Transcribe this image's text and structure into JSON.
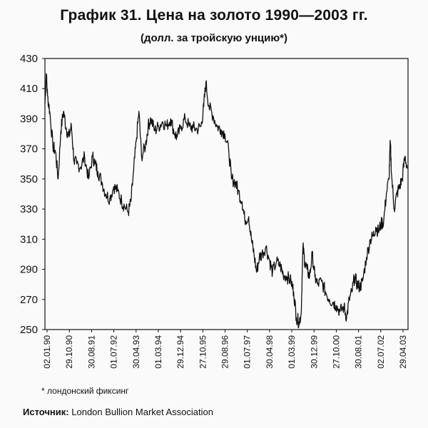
{
  "title": "График 31. Цена на золото 1990—2003 гг.",
  "subtitle": "(долл. за тройскую унцию*)",
  "footnote": "* лондонский фиксинг",
  "source": {
    "label": "Источник:",
    "text": "London Bullion Market Association"
  },
  "colors": {
    "line": "#111111",
    "background": "#fafafa"
  },
  "chart_data": {
    "type": "line",
    "title": "График 31. Цена на золото 1990—2003 гг.",
    "xlabel": "",
    "ylabel": "",
    "ylim": [
      250,
      430
    ],
    "yticks": [
      250,
      270,
      290,
      310,
      330,
      350,
      370,
      390,
      410,
      430
    ],
    "xtick_labels": [
      "02.01.90",
      "29.10.90",
      "30.08.91",
      "01.07.92",
      "30.04.93",
      "01.03.94",
      "29.12.94",
      "27.10.95",
      "29.08.96",
      "01.07.97",
      "30.04.98",
      "01.03.99",
      "30.12.99",
      "27.10.00",
      "30.08.01",
      "02.07.02",
      "29.04.03"
    ],
    "grid": false,
    "series": [
      {
        "values": [
          [
            1990.0,
            400
          ],
          [
            1990.05,
            420
          ],
          [
            1990.1,
            405
          ],
          [
            1990.18,
            395
          ],
          [
            1990.3,
            372
          ],
          [
            1990.4,
            368
          ],
          [
            1990.5,
            350
          ],
          [
            1990.6,
            382
          ],
          [
            1990.7,
            395
          ],
          [
            1990.8,
            384
          ],
          [
            1990.9,
            378
          ],
          [
            1991.0,
            385
          ],
          [
            1991.1,
            362
          ],
          [
            1991.2,
            360
          ],
          [
            1991.35,
            358
          ],
          [
            1991.5,
            365
          ],
          [
            1991.65,
            350
          ],
          [
            1991.8,
            365
          ],
          [
            1991.9,
            360
          ],
          [
            1992.0,
            355
          ],
          [
            1992.15,
            348
          ],
          [
            1992.3,
            340
          ],
          [
            1992.45,
            337
          ],
          [
            1992.6,
            345
          ],
          [
            1992.75,
            342
          ],
          [
            1992.9,
            335
          ],
          [
            1993.0,
            332
          ],
          [
            1993.15,
            328
          ],
          [
            1993.25,
            335
          ],
          [
            1993.35,
            355
          ],
          [
            1993.45,
            375
          ],
          [
            1993.55,
            395
          ],
          [
            1993.65,
            365
          ],
          [
            1993.8,
            372
          ],
          [
            1993.9,
            385
          ],
          [
            1994.0,
            390
          ],
          [
            1994.15,
            382
          ],
          [
            1994.3,
            385
          ],
          [
            1994.45,
            388
          ],
          [
            1994.6,
            385
          ],
          [
            1994.75,
            390
          ],
          [
            1994.9,
            380
          ],
          [
            1995.0,
            378
          ],
          [
            1995.15,
            385
          ],
          [
            1995.3,
            390
          ],
          [
            1995.45,
            385
          ],
          [
            1995.6,
            384
          ],
          [
            1995.75,
            383
          ],
          [
            1995.9,
            385
          ],
          [
            1996.0,
            398
          ],
          [
            1996.08,
            414
          ],
          [
            1996.2,
            398
          ],
          [
            1996.35,
            392
          ],
          [
            1996.5,
            385
          ],
          [
            1996.65,
            383
          ],
          [
            1996.8,
            380
          ],
          [
            1996.95,
            368
          ],
          [
            1997.05,
            350
          ],
          [
            1997.2,
            348
          ],
          [
            1997.3,
            342
          ],
          [
            1997.45,
            335
          ],
          [
            1997.55,
            323
          ],
          [
            1997.7,
            325
          ],
          [
            1997.8,
            310
          ],
          [
            1997.9,
            300
          ],
          [
            1998.0,
            288
          ],
          [
            1998.1,
            298
          ],
          [
            1998.2,
            300
          ],
          [
            1998.35,
            305
          ],
          [
            1998.5,
            295
          ],
          [
            1998.6,
            288
          ],
          [
            1998.75,
            295
          ],
          [
            1998.9,
            292
          ],
          [
            1999.0,
            287
          ],
          [
            1999.15,
            285
          ],
          [
            1999.3,
            282
          ],
          [
            1999.4,
            275
          ],
          [
            1999.5,
            258
          ],
          [
            1999.6,
            255
          ],
          [
            1999.68,
            260
          ],
          [
            1999.75,
            305
          ],
          [
            1999.82,
            295
          ],
          [
            1999.9,
            290
          ],
          [
            2000.0,
            285
          ],
          [
            2000.1,
            300
          ],
          [
            2000.2,
            285
          ],
          [
            2000.3,
            280
          ],
          [
            2000.45,
            282
          ],
          [
            2000.6,
            275
          ],
          [
            2000.75,
            270
          ],
          [
            2000.9,
            268
          ],
          [
            2001.0,
            266
          ],
          [
            2001.15,
            262
          ],
          [
            2001.3,
            265
          ],
          [
            2001.4,
            258
          ],
          [
            2001.5,
            270
          ],
          [
            2001.6,
            275
          ],
          [
            2001.7,
            285
          ],
          [
            2001.8,
            280
          ],
          [
            2001.9,
            278
          ],
          [
            2002.0,
            282
          ],
          [
            2002.15,
            298
          ],
          [
            2002.3,
            310
          ],
          [
            2002.4,
            312
          ],
          [
            2002.5,
            318
          ],
          [
            2002.6,
            315
          ],
          [
            2002.7,
            320
          ],
          [
            2002.8,
            322
          ],
          [
            2002.9,
            340
          ],
          [
            2003.0,
            350
          ],
          [
            2003.05,
            375
          ],
          [
            2003.1,
            352
          ],
          [
            2003.2,
            330
          ],
          [
            2003.3,
            340
          ],
          [
            2003.4,
            345
          ],
          [
            2003.5,
            350
          ],
          [
            2003.6,
            365
          ],
          [
            2003.7,
            357
          ]
        ]
      }
    ]
  }
}
